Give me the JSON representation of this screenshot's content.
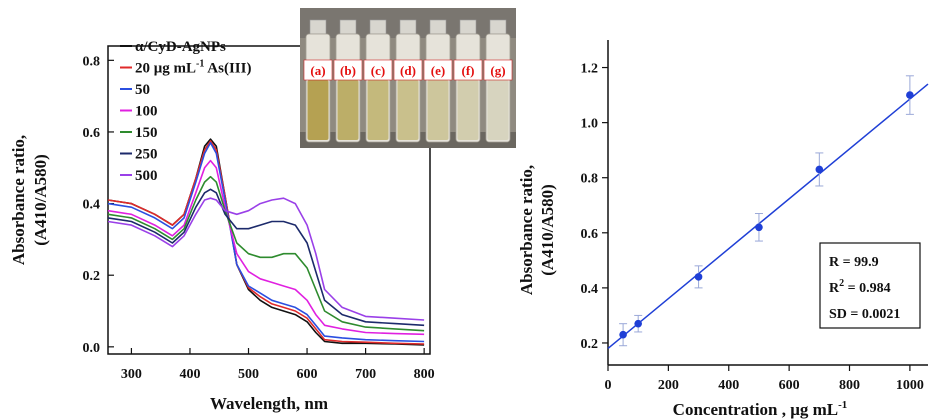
{
  "chart_data": [
    {
      "type": "line",
      "xlabel": "Wavelength, nm",
      "ylabel": "Absorbance ratio,",
      "ylabel2": "(A410/A580)",
      "xlim": [
        260,
        810
      ],
      "ylim": [
        -0.02,
        0.84
      ],
      "xticks": [
        "300",
        "400",
        "500",
        "600",
        "700",
        "800"
      ],
      "yticks": [
        "0.0",
        "0.2",
        "0.4",
        "0.6",
        "0.8"
      ],
      "x": [
        260,
        300,
        340,
        370,
        390,
        410,
        425,
        435,
        445,
        460,
        480,
        500,
        520,
        540,
        560,
        580,
        600,
        615,
        630,
        660,
        700,
        750,
        800
      ],
      "series": [
        {
          "name": "α/CyD-AgNPs",
          "color": "#111111",
          "values": [
            0.41,
            0.4,
            0.37,
            0.34,
            0.37,
            0.47,
            0.56,
            0.58,
            0.56,
            0.42,
            0.23,
            0.16,
            0.13,
            0.11,
            0.1,
            0.09,
            0.07,
            0.04,
            0.015,
            0.01,
            0.01,
            0.008,
            0.005
          ]
        },
        {
          "name": "20 μg mL-1 As(III)",
          "color": "#e02a2a",
          "values": [
            0.41,
            0.4,
            0.37,
            0.34,
            0.37,
            0.47,
            0.55,
            0.575,
            0.55,
            0.42,
            0.23,
            0.165,
            0.14,
            0.12,
            0.11,
            0.1,
            0.08,
            0.05,
            0.02,
            0.015,
            0.013,
            0.01,
            0.008
          ]
        },
        {
          "name": "50",
          "color": "#2b4fe0",
          "values": [
            0.4,
            0.39,
            0.36,
            0.33,
            0.36,
            0.46,
            0.54,
            0.57,
            0.54,
            0.41,
            0.23,
            0.17,
            0.15,
            0.13,
            0.12,
            0.11,
            0.09,
            0.06,
            0.03,
            0.025,
            0.02,
            0.017,
            0.015
          ]
        },
        {
          "name": "100",
          "color": "#e020e0",
          "values": [
            0.38,
            0.37,
            0.34,
            0.31,
            0.34,
            0.43,
            0.5,
            0.52,
            0.5,
            0.39,
            0.26,
            0.21,
            0.19,
            0.18,
            0.17,
            0.16,
            0.13,
            0.09,
            0.06,
            0.05,
            0.04,
            0.037,
            0.035
          ]
        },
        {
          "name": "150",
          "color": "#2e8b2e",
          "values": [
            0.37,
            0.36,
            0.33,
            0.3,
            0.33,
            0.41,
            0.46,
            0.475,
            0.46,
            0.38,
            0.29,
            0.26,
            0.25,
            0.25,
            0.26,
            0.26,
            0.22,
            0.16,
            0.1,
            0.07,
            0.055,
            0.05,
            0.045
          ]
        },
        {
          "name": "250",
          "color": "#1c2a6b",
          "values": [
            0.36,
            0.35,
            0.32,
            0.29,
            0.32,
            0.39,
            0.43,
            0.44,
            0.43,
            0.37,
            0.33,
            0.33,
            0.34,
            0.35,
            0.35,
            0.34,
            0.29,
            0.21,
            0.13,
            0.09,
            0.07,
            0.065,
            0.06
          ]
        },
        {
          "name": "500",
          "color": "#9a40e8",
          "values": [
            0.35,
            0.34,
            0.31,
            0.28,
            0.31,
            0.37,
            0.41,
            0.415,
            0.41,
            0.38,
            0.37,
            0.38,
            0.4,
            0.41,
            0.415,
            0.4,
            0.34,
            0.26,
            0.16,
            0.11,
            0.085,
            0.08,
            0.075
          ]
        }
      ],
      "inset_vials": [
        "(a)",
        "(b)",
        "(c)",
        "(d)",
        "(e)",
        "(f)",
        "(g)"
      ],
      "inset_liquid_colors": [
        "#b5a152",
        "#bcae68",
        "#c4b97c",
        "#c9c08c",
        "#cdc69c",
        "#d2cdae",
        "#d7d4bf"
      ],
      "legend": "top-left"
    },
    {
      "type": "scatter",
      "xlabel": "Concentration , μg mL",
      "xlabel_sup": "-1",
      "ylabel": "Absorbance ratio,",
      "ylabel2": "(A410/A580)",
      "xlim": [
        0,
        1060
      ],
      "ylim": [
        0.12,
        1.3
      ],
      "xticks": [
        "0",
        "200",
        "400",
        "600",
        "800",
        "1000"
      ],
      "yticks": [
        "0.2",
        "0.4",
        "0.6",
        "0.8",
        "1.0",
        "1.2"
      ],
      "points": [
        {
          "x": 50,
          "y": 0.23,
          "err": 0.04
        },
        {
          "x": 100,
          "y": 0.27,
          "err": 0.03
        },
        {
          "x": 300,
          "y": 0.44,
          "err": 0.04
        },
        {
          "x": 500,
          "y": 0.62,
          "err": 0.05
        },
        {
          "x": 700,
          "y": 0.83,
          "err": 0.06
        },
        {
          "x": 1000,
          "y": 1.1,
          "err": 0.07
        }
      ],
      "fit_line": {
        "x": [
          0,
          1060
        ],
        "y": [
          0.18,
          1.14
        ]
      },
      "stats": {
        "r": "R = 99.9",
        "r2_prefix": "R",
        "r2_sup": "2",
        "r2_value": " = 0.984",
        "sd": "SD = 0.0021"
      },
      "color": "#1f3fd6"
    }
  ]
}
